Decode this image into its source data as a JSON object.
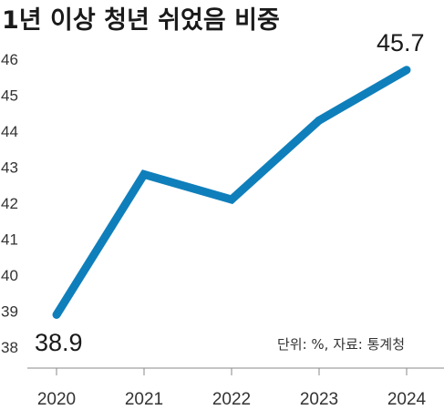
{
  "chart_data": {
    "type": "line",
    "title": "1년 이상 청년 쉬었음 비중",
    "note": "단위: %, 자료: 통계청",
    "categories": [
      "2020",
      "2021",
      "2022",
      "2023",
      "2024"
    ],
    "series": [
      {
        "values": [
          38.9,
          42.8,
          42.1,
          44.3,
          45.7
        ]
      }
    ],
    "data_labels": {
      "first": "38.9",
      "last": "45.7"
    },
    "y_ticks": [
      "38",
      "39",
      "40",
      "41",
      "42",
      "43",
      "44",
      "45",
      "46"
    ],
    "ylim": [
      38,
      46
    ],
    "grid": false,
    "line_color": "#0f7fbb"
  }
}
